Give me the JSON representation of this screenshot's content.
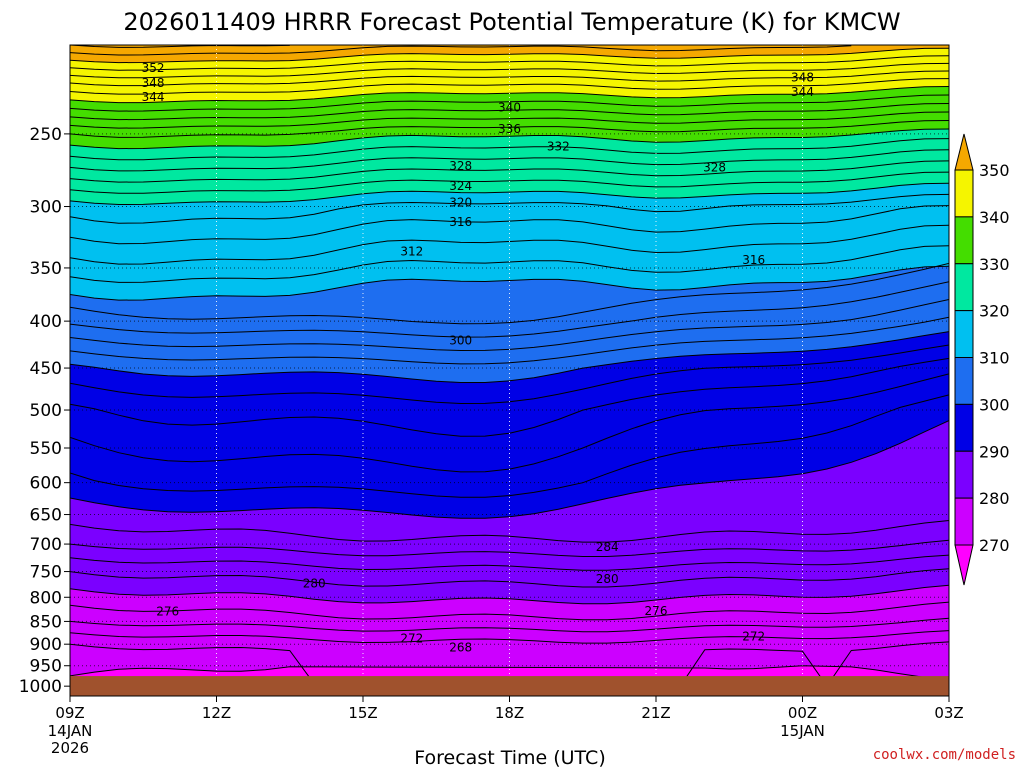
{
  "chart_data": {
    "type": "contour",
    "title": "2026011409 HRRR Forecast Potential Temperature (K) for KMCW",
    "xlabel": "Forecast Time (UTC)",
    "ylabel": "",
    "x_ticks": [
      {
        "label": "09Z",
        "sub": [
          "14JAN",
          "2026"
        ],
        "hour": 0
      },
      {
        "label": "12Z",
        "sub": [],
        "hour": 3
      },
      {
        "label": "15Z",
        "sub": [],
        "hour": 6
      },
      {
        "label": "18Z",
        "sub": [],
        "hour": 9
      },
      {
        "label": "21Z",
        "sub": [],
        "hour": 12
      },
      {
        "label": "00Z",
        "sub": [
          "15JAN"
        ],
        "hour": 15
      },
      {
        "label": "03Z",
        "sub": [],
        "hour": 18
      }
    ],
    "xlim": [
      0,
      18
    ],
    "y_ticks": [
      250,
      300,
      350,
      400,
      450,
      500,
      550,
      600,
      650,
      700,
      750,
      800,
      850,
      900,
      950,
      1000
    ],
    "ylim_hPa": [
      1025,
      200
    ],
    "y_scale": "log-pressure",
    "surface_pressure_hPa": 975,
    "colorbar": {
      "ticks": [
        270,
        280,
        290,
        300,
        310,
        320,
        330,
        340,
        350
      ],
      "bins": [
        {
          "from": 260,
          "to": 270,
          "color": "#ff00ff"
        },
        {
          "from": 270,
          "to": 280,
          "color": "#cc00ff"
        },
        {
          "from": 280,
          "to": 290,
          "color": "#7b00ff"
        },
        {
          "from": 290,
          "to": 300,
          "color": "#0000e6"
        },
        {
          "from": 300,
          "to": 310,
          "color": "#1e6ef0"
        },
        {
          "from": 310,
          "to": 320,
          "color": "#00c0f0"
        },
        {
          "from": 320,
          "to": 330,
          "color": "#00e8a0"
        },
        {
          "from": 330,
          "to": 340,
          "color": "#44dd00"
        },
        {
          "from": 340,
          "to": 350,
          "color": "#f5f500"
        },
        {
          "from": 350,
          "to": 360,
          "color": "#f5a800"
        }
      ]
    },
    "contour_interval_K": 2,
    "contour_labels": [
      {
        "value": "352",
        "hour": 1.7,
        "p": 212
      },
      {
        "value": "348",
        "hour": 1.7,
        "p": 220
      },
      {
        "value": "344",
        "hour": 1.7,
        "p": 228
      },
      {
        "value": "348",
        "hour": 15.0,
        "p": 217
      },
      {
        "value": "344",
        "hour": 15.0,
        "p": 225
      },
      {
        "value": "340",
        "hour": 9.0,
        "p": 234
      },
      {
        "value": "336",
        "hour": 9.0,
        "p": 247
      },
      {
        "value": "332",
        "hour": 10.0,
        "p": 258
      },
      {
        "value": "328",
        "hour": 8.0,
        "p": 271
      },
      {
        "value": "328",
        "hour": 13.2,
        "p": 272
      },
      {
        "value": "324",
        "hour": 8.0,
        "p": 285
      },
      {
        "value": "320",
        "hour": 8.0,
        "p": 297
      },
      {
        "value": "316",
        "hour": 8.0,
        "p": 312
      },
      {
        "value": "312",
        "hour": 7.0,
        "p": 336
      },
      {
        "value": "316",
        "hour": 14.0,
        "p": 343
      },
      {
        "value": "300",
        "hour": 8.0,
        "p": 420
      },
      {
        "value": "284",
        "hour": 11.0,
        "p": 705
      },
      {
        "value": "280",
        "hour": 5.0,
        "p": 773
      },
      {
        "value": "280",
        "hour": 11.0,
        "p": 764
      },
      {
        "value": "276",
        "hour": 2.0,
        "p": 829
      },
      {
        "value": "276",
        "hour": 12.0,
        "p": 828
      },
      {
        "value": "272",
        "hour": 7.0,
        "p": 887
      },
      {
        "value": "272",
        "hour": 14.0,
        "p": 883
      },
      {
        "value": "268",
        "hour": 8.0,
        "p": 907
      }
    ]
  },
  "credit": "coolwx.com/models"
}
